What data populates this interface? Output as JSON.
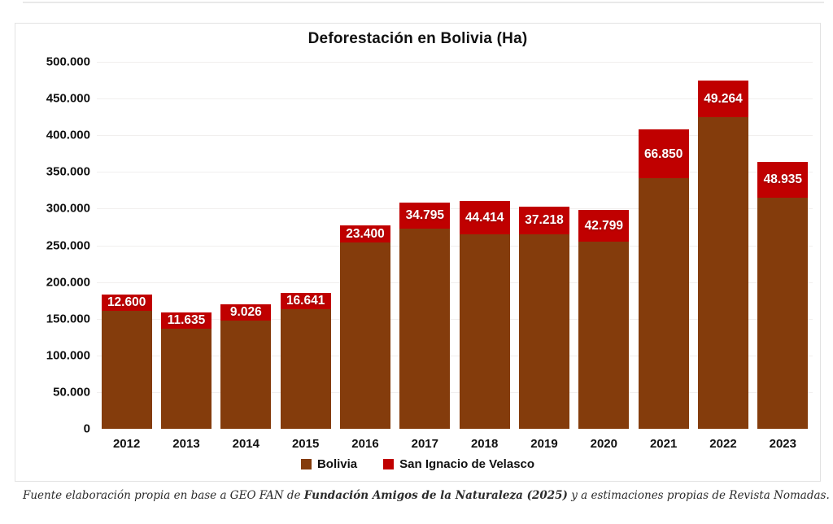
{
  "chart_data": {
    "type": "bar",
    "stacked": true,
    "title": "Deforestación en Bolivia (Ha)",
    "categories": [
      "2012",
      "2013",
      "2014",
      "2015",
      "2016",
      "2017",
      "2018",
      "2019",
      "2020",
      "2021",
      "2022",
      "2023"
    ],
    "series": [
      {
        "name": "Bolivia",
        "color": "#843C0C",
        "values": [
          161000,
          136500,
          148000,
          163500,
          253500,
          273000,
          265500,
          265000,
          255000,
          341000,
          425000,
          315000
        ]
      },
      {
        "name": "San Ignacio de Velasco",
        "color": "#C00000",
        "values": [
          12600,
          11635,
          9026,
          16641,
          23400,
          34795,
          44414,
          37218,
          42799,
          66850,
          49264,
          48935
        ],
        "data_labels": [
          "12.600",
          "11.635",
          "9.026",
          "16.641",
          "23.400",
          "34.795",
          "44.414",
          "37.218",
          "42.799",
          "66.850",
          "49.264",
          "48.935"
        ]
      }
    ],
    "ylim": [
      0,
      500000
    ],
    "ytick_step": 50000,
    "ytick_labels": [
      "0",
      "50.000",
      "100.000",
      "150.000",
      "200.000",
      "250.000",
      "300.000",
      "350.000",
      "400.000",
      "450.000",
      "500.000"
    ],
    "grid": true,
    "legend_position": "bottom"
  },
  "footer": {
    "prefix": "Fuente elaboración propia en base a GEO FAN de ",
    "bold": "Fundación Amigos de la Naturaleza (2025)",
    "suffix": " y a estimaciones propias de Revista Nomadas."
  }
}
